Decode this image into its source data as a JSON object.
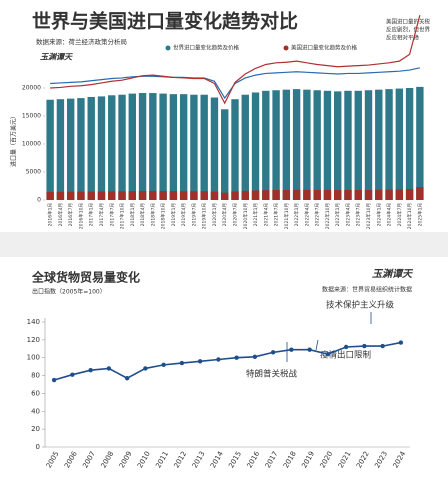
{
  "chart_data": [
    {
      "type": "bar",
      "title": "世界与美国进口量变化趋势对比",
      "subtitle": "数据来源：荷兰经济政策分析局",
      "logo": "玉渊谭天",
      "ylabel": "进口量（百万美元）",
      "annotation": [
        "美国进口量的关税",
        "反应剧烈，但世界",
        "反应相对平稳"
      ],
      "categories": [
        "2016年1月",
        "2016年4月",
        "2016年7月",
        "2016年10月",
        "2017年1月",
        "2017年4月",
        "2017年7月",
        "2017年10月",
        "2018年1月",
        "2018年4月",
        "2018年7月",
        "2018年10月",
        "2019年1月",
        "2019年4月",
        "2019年7月",
        "2019年10月",
        "2020年1月",
        "2020年4月",
        "2020年7月",
        "2020年10月",
        "2021年1月",
        "2021年4月",
        "2021年7月",
        "2021年10月",
        "2022年1月",
        "2022年4月",
        "2022年7月",
        "2022年10月",
        "2023年1月",
        "2023年4月",
        "2023年7月",
        "2023年10月",
        "2024年1月",
        "2024年4月",
        "2024年7月",
        "2024年10月",
        "2025年1月"
      ],
      "ylim": [
        0,
        35000
      ],
      "yticks": [
        0,
        5000,
        10000,
        15000,
        20000
      ],
      "series": [
        {
          "name": "世界进口量变化趋势及价格",
          "color": "#2f7a8a",
          "type": "bar",
          "values": [
            17900,
            18000,
            18100,
            18200,
            18400,
            18500,
            18700,
            18800,
            19000,
            19100,
            19100,
            19000,
            18900,
            18900,
            18800,
            18800,
            18300,
            16200,
            18000,
            18800,
            19200,
            19500,
            19600,
            19700,
            19800,
            19700,
            19600,
            19500,
            19400,
            19500,
            19500,
            19600,
            19700,
            19800,
            19900,
            20000,
            20200
          ]
        },
        {
          "name": "美国进口量变化趋势及价格",
          "color": "#a0302a",
          "type": "bar",
          "values": [
            1450,
            1460,
            1480,
            1500,
            1510,
            1520,
            1540,
            1560,
            1580,
            1600,
            1610,
            1600,
            1590,
            1580,
            1570,
            1560,
            1500,
            1300,
            1550,
            1620,
            1700,
            1750,
            1780,
            1800,
            1820,
            1800,
            1790,
            1780,
            1770,
            1780,
            1790,
            1800,
            1820,
            1850,
            1880,
            1950,
            2300
          ]
        },
        {
          "color": "#2a6ab0",
          "type": "line",
          "values": [
            20800,
            20900,
            21000,
            21100,
            21300,
            21500,
            21700,
            21800,
            22000,
            22100,
            22100,
            22000,
            21900,
            21900,
            21800,
            21800,
            21200,
            18200,
            20800,
            21800,
            22300,
            22600,
            22700,
            22800,
            22900,
            22800,
            22700,
            22600,
            22500,
            22600,
            22600,
            22700,
            22800,
            22900,
            23000,
            23200,
            23600
          ]
        },
        {
          "color": "#b03030",
          "type": "line",
          "values": [
            20000,
            20100,
            20300,
            20400,
            20600,
            20900,
            21200,
            21400,
            21800,
            22200,
            22300,
            22100,
            21900,
            21800,
            21700,
            21700,
            20800,
            17300,
            21000,
            22500,
            23500,
            24200,
            24500,
            24600,
            24800,
            24500,
            24200,
            24000,
            23800,
            23900,
            24000,
            24100,
            24300,
            24500,
            24800,
            26000,
            33000
          ]
        }
      ]
    },
    {
      "type": "line",
      "title": "全球货物贸易量变化",
      "ylabel": "出口指数（2005年=100）",
      "source": "数据来源：世界贸易组织统计数据",
      "logo": "玉渊谭天",
      "annotations": [
        "特朗普关税战",
        "疫情出口限制",
        "技术保护主义升级"
      ],
      "categories": [
        "2005",
        "2006",
        "2007",
        "2008",
        "2009",
        "2010",
        "2011",
        "2012",
        "2013",
        "2014",
        "2015",
        "2016",
        "2017",
        "2018",
        "2019",
        "2020",
        "2021",
        "2022",
        "2023",
        "2024"
      ],
      "values": [
        75,
        81,
        86,
        88,
        77,
        88,
        92,
        94,
        96,
        98,
        100,
        101,
        106,
        109,
        109,
        104,
        112,
        113,
        113,
        117
      ],
      "color": "#1f4e8c",
      "ylim": [
        0,
        140
      ],
      "yticks": [
        0,
        20,
        40,
        60,
        80,
        100,
        120,
        140
      ]
    }
  ]
}
